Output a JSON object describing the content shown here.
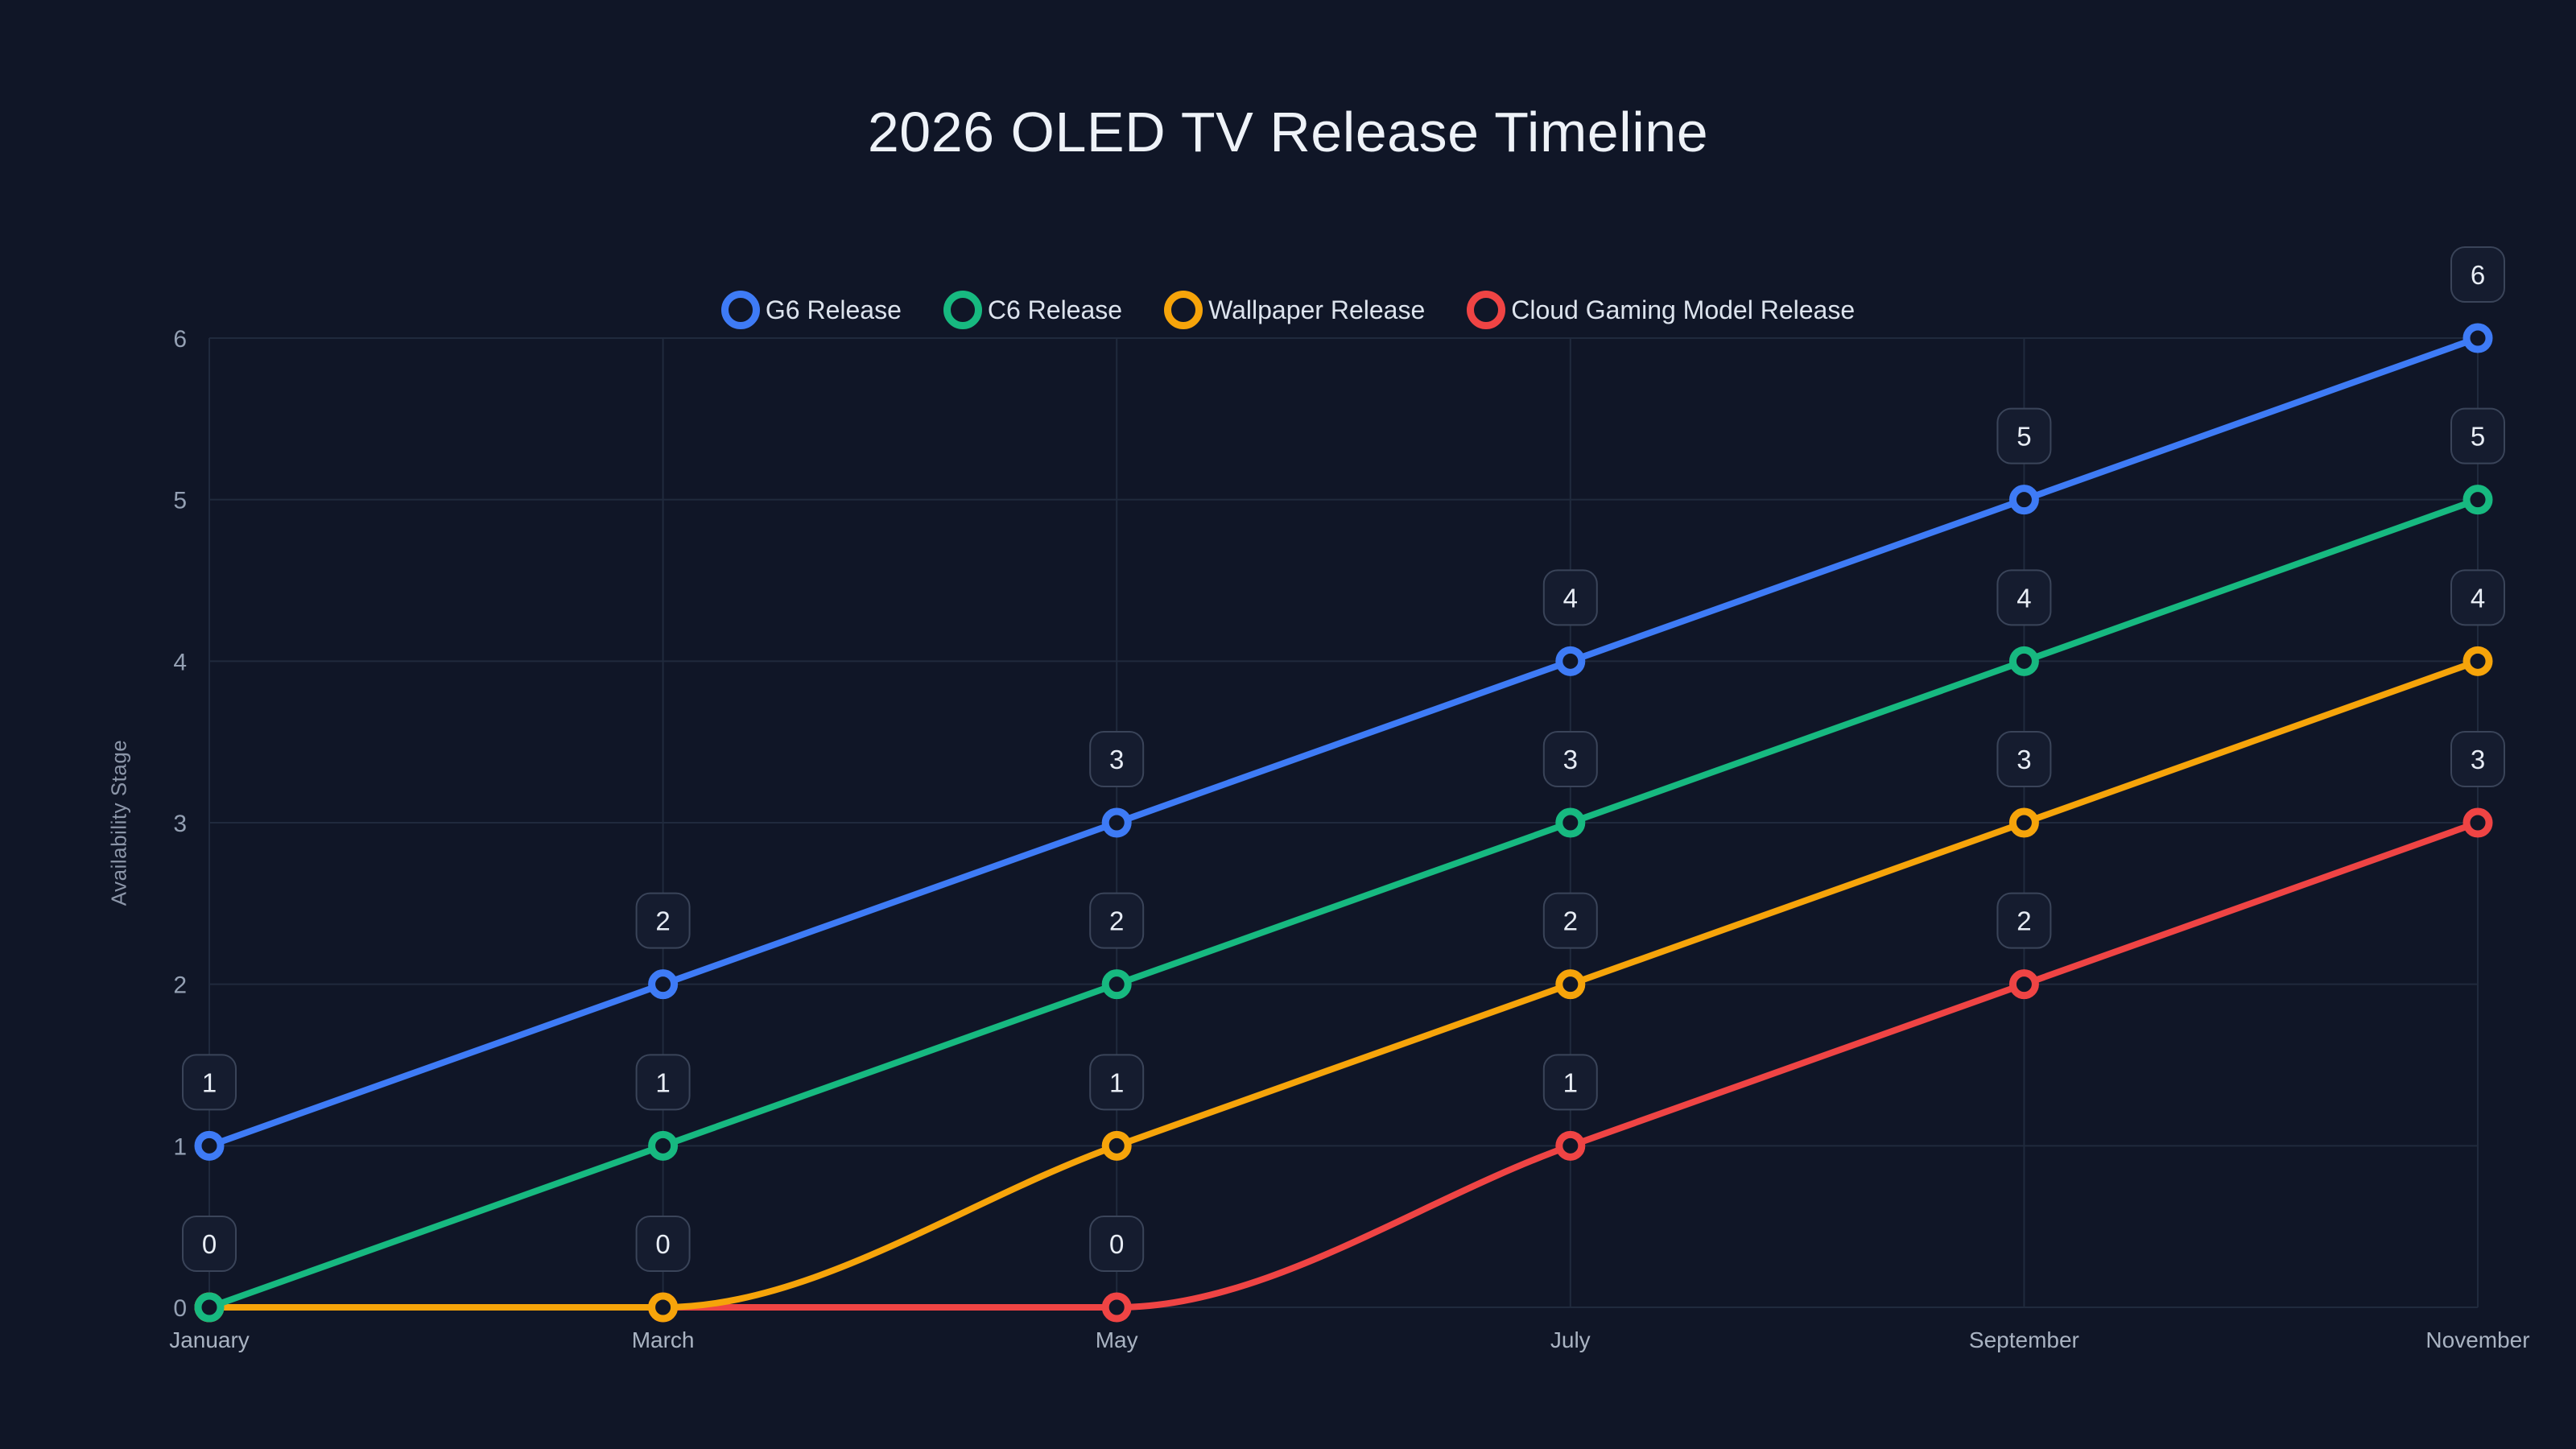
{
  "page": {
    "background": "#101627",
    "grid_color": "#202a3d",
    "tick_color": "#94a0b3",
    "x_label_color": "#a9b3c2",
    "data_label_badge": {
      "fill": "#151c2f",
      "border": "#3a4459",
      "text": "#e8edf5"
    }
  },
  "chart_data": {
    "type": "line",
    "title": "2026 OLED TV Release Timeline",
    "xlabel": "",
    "ylabel": "Availability Stage",
    "categories": [
      "January",
      "March",
      "May",
      "July",
      "September",
      "November"
    ],
    "y_ticks": [
      0,
      1,
      2,
      3,
      4,
      5,
      6
    ],
    "ylim": [
      0,
      6
    ],
    "grid": true,
    "legend_position": "top",
    "line_style": "monotone-curve",
    "point_style": "hollow-circle",
    "data_labels": "rounded-badge-above-each-point",
    "series": [
      {
        "name": "G6 Release",
        "color": "#3e7bf6",
        "values": [
          1,
          2,
          3,
          4,
          5,
          6
        ]
      },
      {
        "name": "C6 Release",
        "color": "#17b980",
        "values": [
          0,
          1,
          2,
          3,
          4,
          5
        ]
      },
      {
        "name": "Wallpaper Release",
        "color": "#f6a40a",
        "values": [
          0,
          0,
          1,
          2,
          3,
          4
        ]
      },
      {
        "name": "Cloud Gaming Model Release",
        "color": "#ef4444",
        "values": [
          0,
          0,
          0,
          1,
          2,
          3
        ]
      }
    ]
  }
}
